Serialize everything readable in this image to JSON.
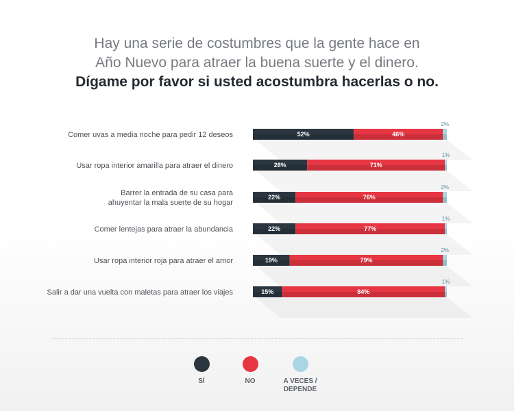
{
  "header": {
    "line1": "Hay una serie de costumbres que la gente hace en",
    "line2": "Año Nuevo para atraer la buena suerte y el dinero.",
    "line3": "Dígame por favor si usted acostumbra hacerlas o no."
  },
  "colors": {
    "si": "#2b3640",
    "no": "#e63643",
    "aveces": "#a9d6e5"
  },
  "legend": {
    "si": "SÍ",
    "no": "NO",
    "aveces_line1": "A VECES /",
    "aveces_line2": "DEPENDE"
  },
  "chart_data": {
    "type": "bar",
    "orientation": "horizontal",
    "stacked": true,
    "title": "Hay una serie de costumbres que la gente hace en Año Nuevo para atraer la buena suerte y el dinero. Dígame por favor si usted acostumbra hacerlas o no.",
    "categories": [
      [
        "Comer uvas a media noche para pedir 12 deseos"
      ],
      [
        "Usar ropa interior amarilla para atraer el dinero"
      ],
      [
        "Barrer la entrada de su casa para",
        "ahuyentar la mala suerte de su hogar"
      ],
      [
        "Comer lentejas para atraer la abundancia"
      ],
      [
        "Usar ropa interior roja para atraer el amor"
      ],
      [
        "Salir a dar una vuelta con maletas para atraer los viajes"
      ]
    ],
    "series": [
      {
        "name": "SÍ",
        "values": [
          52,
          28,
          22,
          22,
          19,
          15
        ]
      },
      {
        "name": "NO",
        "values": [
          46,
          71,
          76,
          77,
          79,
          84
        ]
      },
      {
        "name": "A VECES / DEPENDE",
        "values": [
          2,
          1,
          2,
          1,
          2,
          1
        ]
      }
    ],
    "value_suffix": "%",
    "xlim": [
      0,
      100
    ]
  }
}
